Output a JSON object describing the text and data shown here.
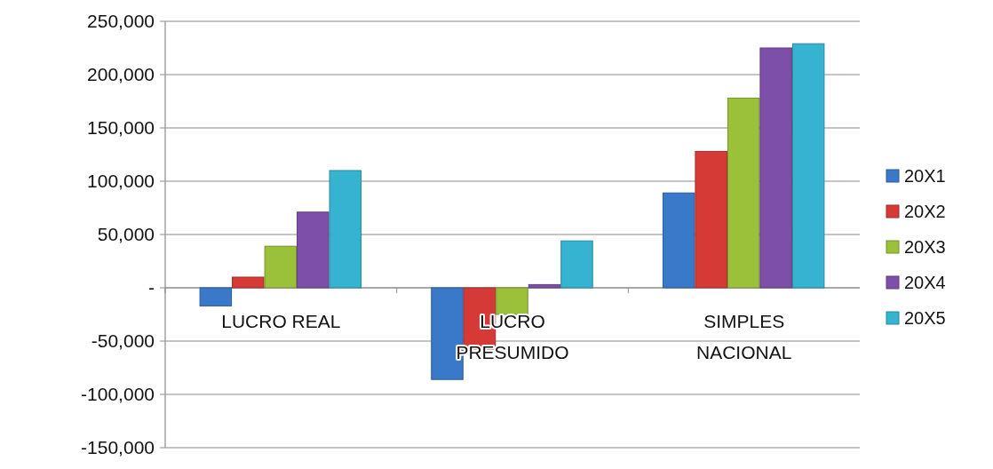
{
  "chart_data": {
    "type": "bar",
    "categories": [
      "LUCRO REAL",
      "LUCRO PRESUMIDO",
      "SIMPLES NACIONAL"
    ],
    "series": [
      {
        "name": "20X1",
        "color": "#3a78c9",
        "values": [
          -17000,
          -86000,
          89000
        ]
      },
      {
        "name": "20X2",
        "color": "#d63a36",
        "values": [
          10000,
          -58000,
          128000
        ]
      },
      {
        "name": "20X3",
        "color": "#9bc13a",
        "values": [
          39000,
          -25000,
          178000
        ]
      },
      {
        "name": "20X4",
        "color": "#7e4fa8",
        "values": [
          71000,
          3000,
          225000
        ]
      },
      {
        "name": "20X5",
        "color": "#35b3d1",
        "values": [
          110000,
          44000,
          229000
        ]
      }
    ],
    "ylim": [
      -150000,
      250000
    ],
    "yticks": [
      {
        "value": -150000,
        "label": "-150,000"
      },
      {
        "value": -100000,
        "label": "-100,000"
      },
      {
        "value": -50000,
        "label": "-50,000"
      },
      {
        "value": 0,
        "label": "-"
      },
      {
        "value": 50000,
        "label": "50,000"
      },
      {
        "value": 100000,
        "label": "100,000"
      },
      {
        "value": 150000,
        "label": "150,000"
      },
      {
        "value": 200000,
        "label": "200,000"
      },
      {
        "value": 250000,
        "label": "250,000"
      }
    ],
    "grid": "y",
    "legend": "right"
  }
}
